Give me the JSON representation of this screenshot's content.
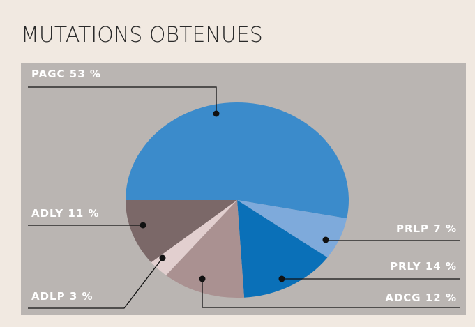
{
  "chart_data": {
    "type": "pie",
    "title": "MUTATIONS OBTENUES",
    "categories": [
      "PAGC",
      "PRLP",
      "PRLY",
      "ADCG",
      "ADLP",
      "ADLY"
    ],
    "values": [
      53,
      7,
      14,
      12,
      3,
      11
    ],
    "value_labels": [
      "53 %",
      "7 %",
      "14 %",
      "12 %",
      "3 %",
      "11 %"
    ],
    "colors": [
      "#3b8bcb",
      "#7eaadb",
      "#0a70b8",
      "#aa9191",
      "#e2cfcf",
      "#7b6868"
    ]
  }
}
